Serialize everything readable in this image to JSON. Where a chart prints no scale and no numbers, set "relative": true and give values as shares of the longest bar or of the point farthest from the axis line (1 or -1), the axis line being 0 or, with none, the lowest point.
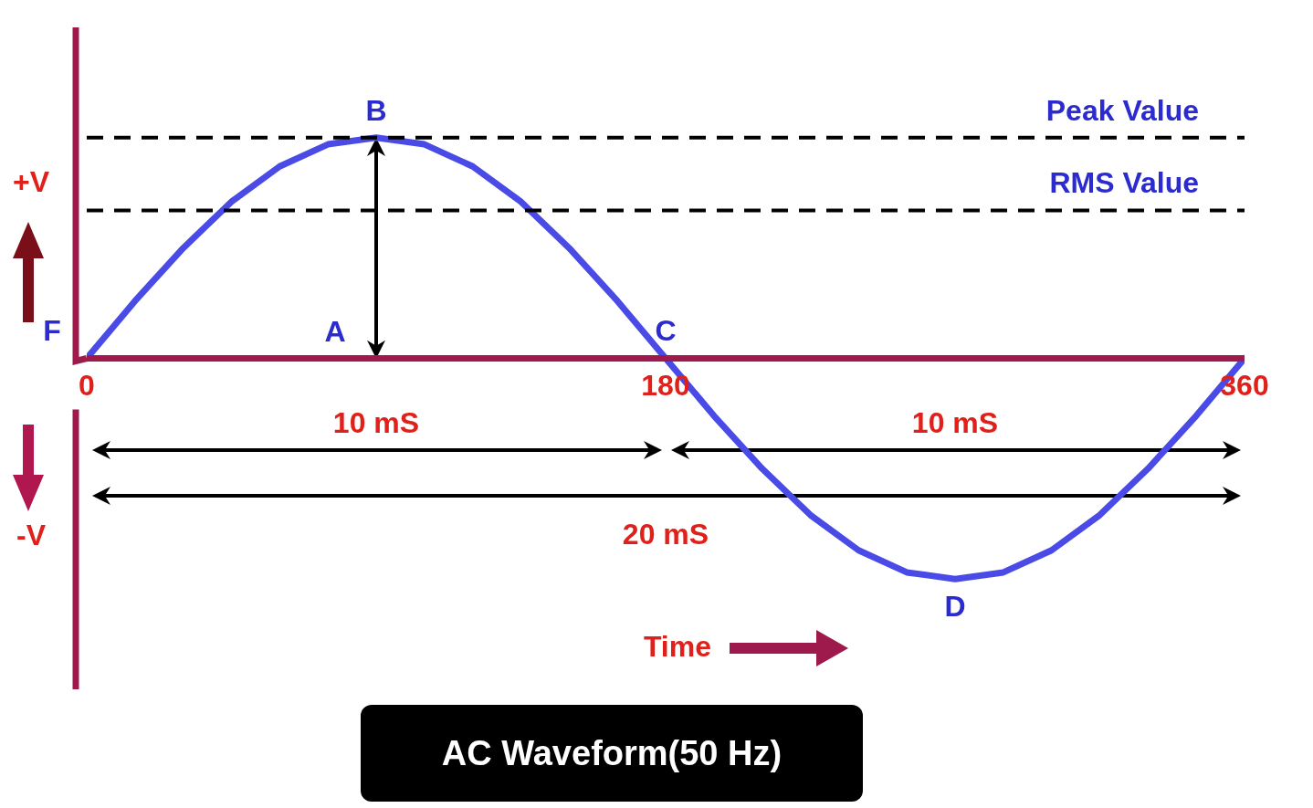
{
  "chart_data": {
    "type": "line",
    "title": "AC Waveform(50 Hz)",
    "xlabel": "Time",
    "relative": true,
    "xlim": [
      0,
      360
    ],
    "xticks": [
      0,
      180,
      360
    ],
    "grid": false,
    "legend": false,
    "marker": "none",
    "line_style": "solid",
    "x": [
      0,
      15,
      30,
      45,
      60,
      75,
      90,
      105,
      120,
      135,
      150,
      165,
      180,
      195,
      210,
      225,
      240,
      255,
      270,
      285,
      300,
      315,
      330,
      345,
      360
    ],
    "series": [
      {
        "color": "#4a4ae6",
        "values": [
          0,
          0.26,
          0.5,
          0.71,
          0.87,
          0.97,
          1,
          0.97,
          0.87,
          0.71,
          0.5,
          0.26,
          0,
          -0.26,
          -0.5,
          -0.71,
          -0.87,
          -0.97,
          -1,
          -0.97,
          -0.87,
          -0.71,
          -0.5,
          -0.26,
          0
        ]
      }
    ],
    "ref_lines": [
      {
        "axis": "y",
        "value": 1,
        "label": "Peak Value",
        "color": "#000000",
        "line_style": "dashed"
      },
      {
        "axis": "y",
        "value": 0.67,
        "label": "RMS Value",
        "color": "#000000",
        "line_style": "dashed"
      }
    ],
    "annotations": [
      {
        "text": "F",
        "x": 0,
        "y": 0
      },
      "A",
      {
        "text": "B",
        "x": 90,
        "y": 1
      },
      {
        "text": "C",
        "x": 180,
        "y": 0
      },
      {
        "text": "D",
        "x": 270,
        "y": -1
      },
      "10 mS",
      "10 mS",
      "20 mS",
      "+V",
      "-V"
    ]
  }
}
